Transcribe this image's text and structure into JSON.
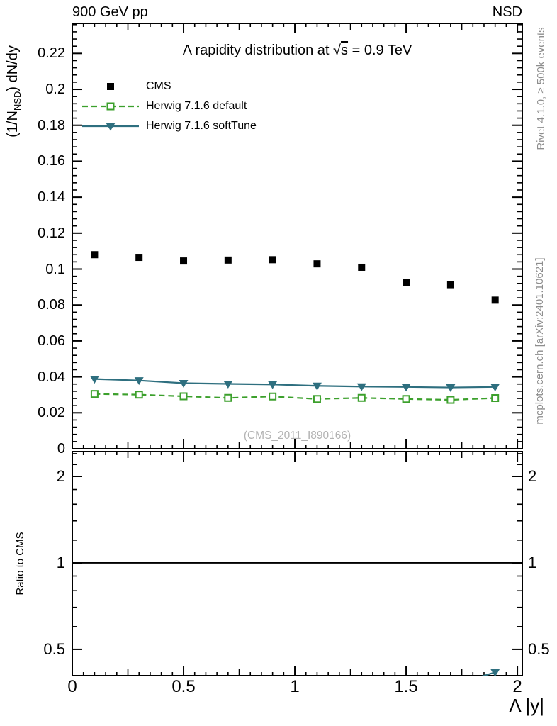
{
  "header": {
    "left": "900 GeV pp",
    "right": "NSD"
  },
  "title": {
    "prefix": "Λ rapidity distribution at ",
    "sqrt": "√",
    "sqrt_arg": "s",
    "suffix": " = 0.9 TeV"
  },
  "axes": {
    "y_label": {
      "pre": "(1/N",
      "sub": "NSD",
      "post": ") dN/dy"
    },
    "x_label": "Λ |y|",
    "ratio_label": "Ratio to CMS"
  },
  "side_notes": {
    "top_right": "Rivet 4.1.0, ≥ 500k events",
    "bottom_right": "mcplots.cern.ch [arXiv:2401.10621]"
  },
  "watermark": "(CMS_2011_I890166)",
  "colors": {
    "data": "#000000",
    "herwig_default": "#3ca02c",
    "herwig_softtune": "#2e6f7f",
    "ref_line": "#000000",
    "gray_text": "#8e8e8e",
    "watermark": "#b2b2b2"
  },
  "chart_data": {
    "type": "scatter",
    "title": "Λ rapidity distribution at √s = 0.9 TeV",
    "xlabel": "Λ |y|",
    "ylabel": "(1/N_NSD) dN/dy",
    "ratio_ylabel": "Ratio to CMS",
    "x": [
      0.1,
      0.3,
      0.5,
      0.7,
      0.9,
      1.1,
      1.3,
      1.5,
      1.7,
      1.9
    ],
    "series": [
      {
        "name": "CMS",
        "role": "data",
        "color": "#000000",
        "marker": "square-filled",
        "line": "none",
        "values": [
          0.108,
          0.1065,
          0.1045,
          0.105,
          0.1052,
          0.1029,
          0.101,
          0.0925,
          0.0913,
          0.0827
        ]
      },
      {
        "name": "Herwig 7.1.6 default",
        "role": "mc",
        "color": "#3ca02c",
        "marker": "square-open",
        "line": "dashed",
        "values": [
          0.0305,
          0.0301,
          0.0292,
          0.0283,
          0.0291,
          0.0277,
          0.0283,
          0.0277,
          0.0272,
          0.0282
        ]
      },
      {
        "name": "Herwig 7.1.6 softTune",
        "role": "mc",
        "color": "#2e6f7f",
        "marker": "triangle-down-filled",
        "line": "solid",
        "values": [
          0.0388,
          0.038,
          0.0365,
          0.0361,
          0.0358,
          0.035,
          0.0346,
          0.0344,
          0.0341,
          0.0344
        ]
      }
    ],
    "x_axis": {
      "min": 0,
      "max": 2.022,
      "minor_step": 0.05,
      "medium_step": 0.25,
      "major_step": 0.5,
      "ticks": [
        {
          "v": 0,
          "t": "0"
        },
        {
          "v": 0.5,
          "t": "0.5"
        },
        {
          "v": 1,
          "t": "1"
        },
        {
          "v": 1.5,
          "t": "1.5"
        },
        {
          "v": 2,
          "t": "2"
        }
      ]
    },
    "main_axis": {
      "min": 0,
      "max": 0.2367,
      "major_step": 0.02,
      "minor_per_major": 5,
      "grid": false,
      "tick_labels": [
        "0",
        "0.02",
        "0.04",
        "0.06",
        "0.08",
        "0.1",
        "0.12",
        "0.14",
        "0.16",
        "0.18",
        "0.2",
        "0.22"
      ]
    },
    "ratio_axis": {
      "scale": "log",
      "min": 0.405,
      "max": 2.44,
      "ref_line": 1,
      "ticks": [
        {
          "v": 0.5,
          "t": "0.5"
        },
        {
          "v": 1,
          "t": "1"
        },
        {
          "v": 2,
          "t": "2"
        }
      ],
      "minor": [
        0.6,
        0.7,
        0.8,
        0.9,
        1.2,
        1.4,
        1.6,
        1.8,
        2.2,
        2.4
      ]
    },
    "legend_position": "top-left-inside"
  }
}
